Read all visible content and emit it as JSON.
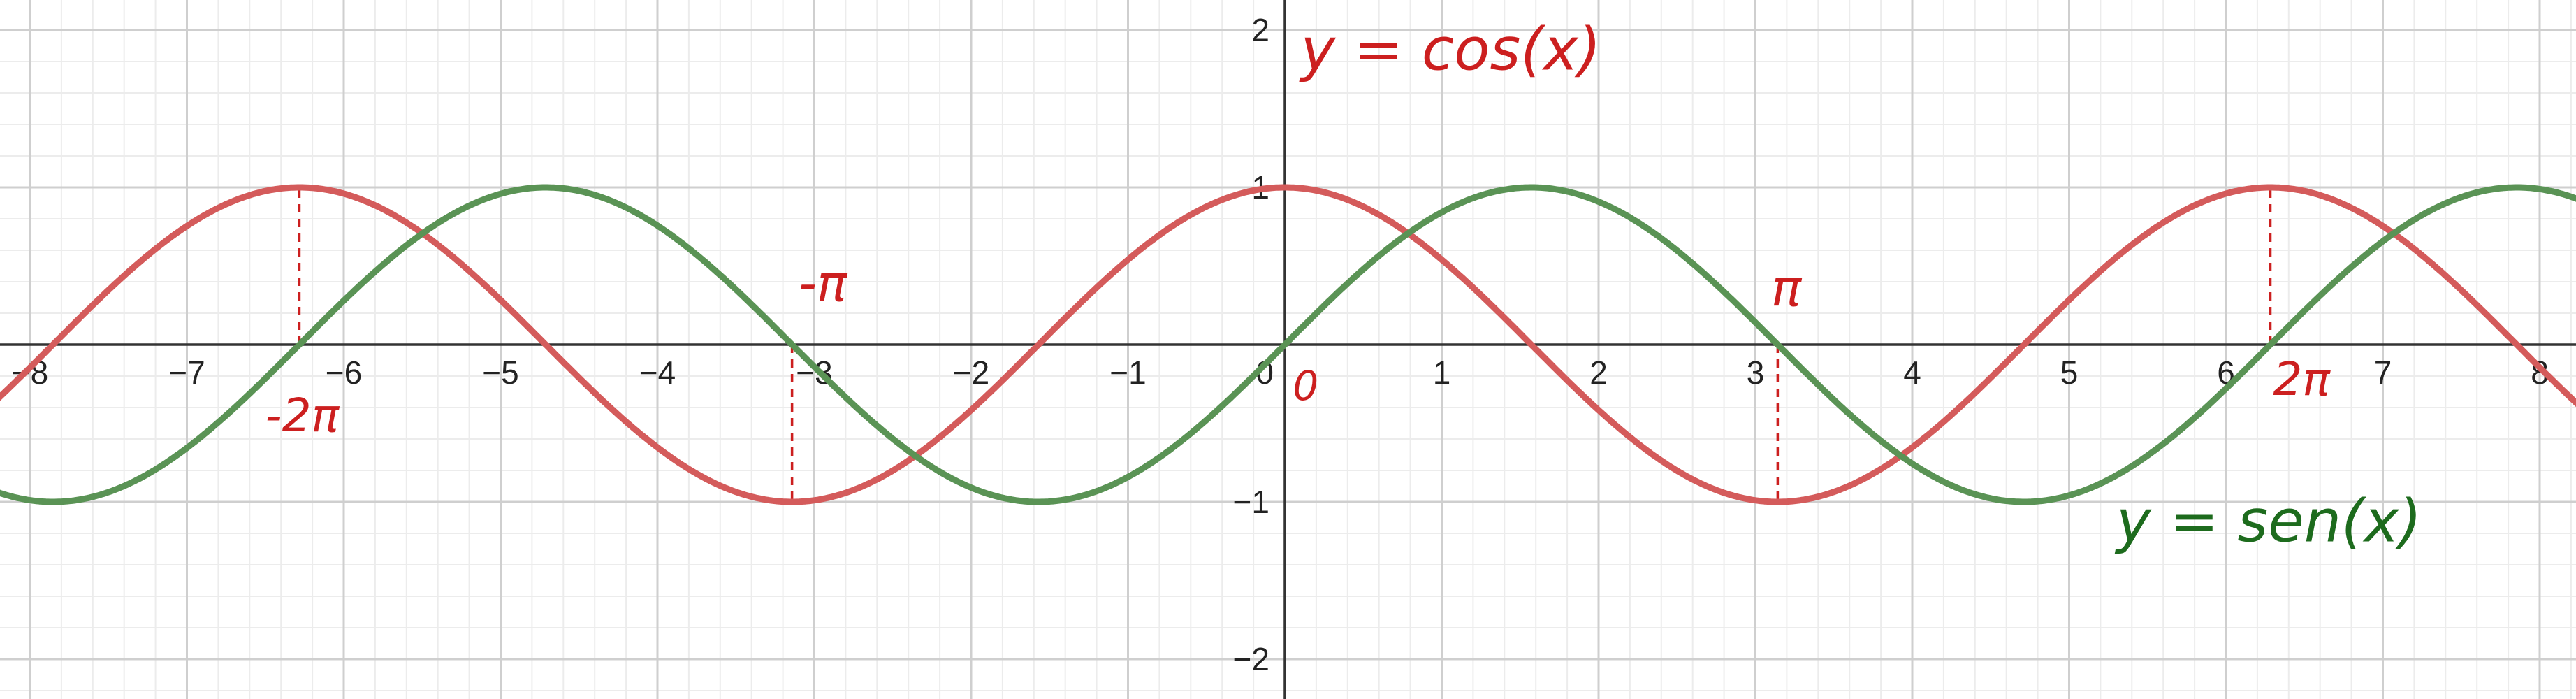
{
  "chart_data": {
    "type": "line",
    "title": "",
    "xlabel": "",
    "ylabel": "",
    "xlim": [
      -8.2,
      8.2
    ],
    "ylim": [
      -2.2,
      2.2
    ],
    "grid": true,
    "x_ticks": [
      -8,
      -7,
      -6,
      -5,
      -4,
      -3,
      -2,
      -1,
      0,
      1,
      2,
      3,
      4,
      5,
      6,
      7,
      8
    ],
    "x_tick_labels": [
      "−8",
      "−7",
      "−6",
      "−5",
      "−4",
      "−3",
      "−2",
      "−1",
      "0",
      "1",
      "2",
      "3",
      "4",
      "5",
      "6",
      "7",
      "8"
    ],
    "y_ticks": [
      -2,
      -1,
      1,
      2
    ],
    "y_tick_labels": [
      "−2",
      "−1",
      "1",
      "2"
    ],
    "series": [
      {
        "name": "y = cos(x)",
        "function": "cos",
        "color": "#d45b5b",
        "x": [
          -8,
          -7,
          -6.283,
          -6,
          -5,
          -4,
          -3.142,
          -3,
          -2,
          -1,
          0,
          1,
          2,
          3,
          3.142,
          4,
          5,
          6,
          6.283,
          7,
          8
        ],
        "y": [
          -0.146,
          0.754,
          1,
          0.96,
          0.284,
          -0.654,
          -1,
          -0.99,
          -0.416,
          0.54,
          1,
          0.54,
          -0.416,
          -0.99,
          -1,
          -0.654,
          0.284,
          0.96,
          1,
          0.754,
          -0.146
        ]
      },
      {
        "name": "y = sen(x)",
        "function": "sin",
        "color": "#5a9355",
        "x": [
          -8,
          -7.854,
          -7,
          -6.283,
          -6,
          -5,
          -4.712,
          -4,
          -3.142,
          -3,
          -2,
          -1.571,
          -1,
          0,
          1,
          1.571,
          2,
          3,
          3.142,
          4,
          4.712,
          5,
          6,
          6.283,
          7,
          7.854,
          8
        ],
        "y": [
          -0.989,
          -1,
          -0.657,
          0,
          0.279,
          0.959,
          1,
          0.757,
          0,
          -0.141,
          -0.909,
          -1,
          -0.841,
          0,
          0.841,
          1,
          0.909,
          0.141,
          0,
          -0.757,
          -1,
          -0.959,
          -0.279,
          0,
          0.657,
          1,
          0.989
        ]
      }
    ],
    "reference_lines": [
      {
        "x": -6.283,
        "from_y": 0,
        "to_y": 1,
        "color": "#cc1f1f"
      },
      {
        "x": -3.142,
        "from_y": 0,
        "to_y": -1,
        "color": "#cc1f1f"
      },
      {
        "x": 3.142,
        "from_y": 0,
        "to_y": -1,
        "color": "#cc1f1f"
      },
      {
        "x": 6.283,
        "from_y": 0,
        "to_y": 1,
        "color": "#cc1f1f"
      }
    ],
    "annotations": [
      {
        "text": "y = cos(x)",
        "color": "#cc1f1f",
        "x": 0.1,
        "y": 1.75
      },
      {
        "text": "-π",
        "color": "#cc1f1f",
        "x": -3.1,
        "y": 0.28
      },
      {
        "text": "-2π",
        "color": "#cc1f1f",
        "x": -6.5,
        "y": -0.55
      },
      {
        "text": "π",
        "color": "#cc1f1f",
        "x": 3.1,
        "y": 0.25
      },
      {
        "text": "0",
        "color": "#cc1f1f",
        "x": 0.05,
        "y": -0.35
      },
      {
        "text": "2π",
        "color": "#cc1f1f",
        "x": 6.3,
        "y": -0.32
      },
      {
        "text": "y = sen(x)",
        "color": "#1d6b1d",
        "x": 5.3,
        "y": -1.25
      }
    ]
  }
}
